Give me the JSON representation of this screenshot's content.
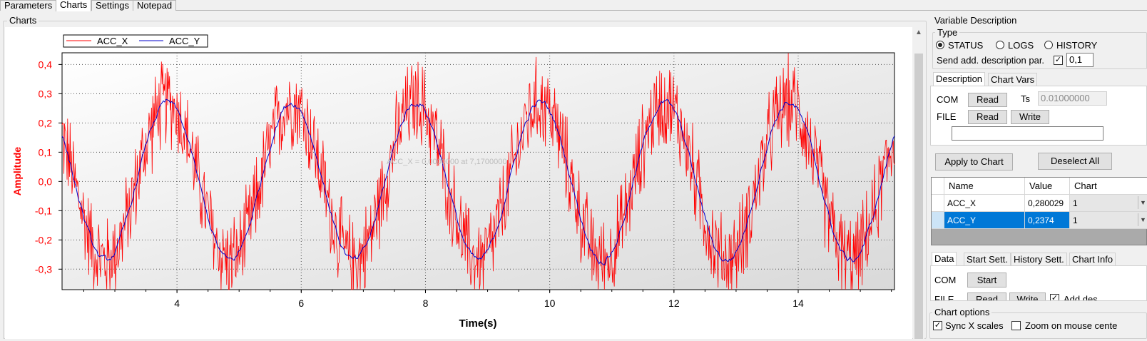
{
  "tabs": [
    {
      "label": "Parameters",
      "active": false
    },
    {
      "label": "Charts",
      "active": true
    },
    {
      "label": "Settings",
      "active": false
    },
    {
      "label": "Notepad",
      "active": false
    }
  ],
  "charts_group": {
    "title": "Charts"
  },
  "cursor_overlay": "ACC_X = 0,0000000 at 7,1700000",
  "chart_data": {
    "type": "line",
    "title": "",
    "xlabel": "Time(s)",
    "ylabel": "Amplitude",
    "xlim": [
      2.15,
      15.55
    ],
    "ylim": [
      -0.37,
      0.44
    ],
    "x_ticks": [
      "4",
      "6",
      "8",
      "10",
      "12",
      "14"
    ],
    "y_ticks": [
      "0,4",
      "0,3",
      "0,2",
      "0,1",
      "0,0",
      "-0,1",
      "-0,2",
      "-0,3"
    ],
    "legend_position": "top-left",
    "grid": true,
    "series": [
      {
        "name": "ACC_X",
        "color": "#ff0000",
        "signal": "sine",
        "amplitude": 0.27,
        "period_s": 2.0,
        "phase_peak_s": 3.85,
        "noise_amplitude": 0.13
      },
      {
        "name": "ACC_Y",
        "color": "#0000cc",
        "signal": "sine",
        "amplitude": 0.27,
        "period_s": 2.0,
        "phase_peak_s": 3.85,
        "noise_amplitude": 0.015
      }
    ]
  },
  "variable_description": {
    "title": "Variable Description",
    "type_group": "Type",
    "type_options": [
      {
        "label": "STATUS",
        "selected": true
      },
      {
        "label": "LOGS",
        "selected": false
      },
      {
        "label": "HISTORY",
        "selected": false
      }
    ],
    "send_add_label": "Send add. description par.",
    "send_add_checked": true,
    "send_add_value": "0,1",
    "subtabs": [
      "Description",
      "Chart Vars"
    ],
    "com_label": "COM",
    "read_label": "Read",
    "ts_label": "Ts",
    "ts_value": "0.01000000",
    "file_label": "FILE",
    "file_read_label": "Read",
    "file_write_label": "Write",
    "file_path": "",
    "apply_button": "Apply to Chart",
    "deselect_button": "Deselect All"
  },
  "variables_table": {
    "columns": [
      "Name",
      "Value",
      "Chart"
    ],
    "rows": [
      {
        "name": "ACC_X",
        "value": "0,280029",
        "chart": "1",
        "selected": false
      },
      {
        "name": "ACC_Y",
        "value": "0,2374",
        "chart": "1",
        "selected": true
      }
    ]
  },
  "data_panel": {
    "tabs": [
      "Data",
      "Start Sett.",
      "History Sett.",
      "Chart Info"
    ],
    "com_label": "COM",
    "start_label": "Start",
    "file_label": "FILE",
    "read_label": "Read",
    "write_label": "Write",
    "add_des_label": "Add des",
    "add_des_checked": true
  },
  "chart_options": {
    "title": "Chart options",
    "sync_label": "Sync X scales",
    "sync_checked": true,
    "zoom_label": "Zoom on mouse cente",
    "zoom_checked": false
  }
}
